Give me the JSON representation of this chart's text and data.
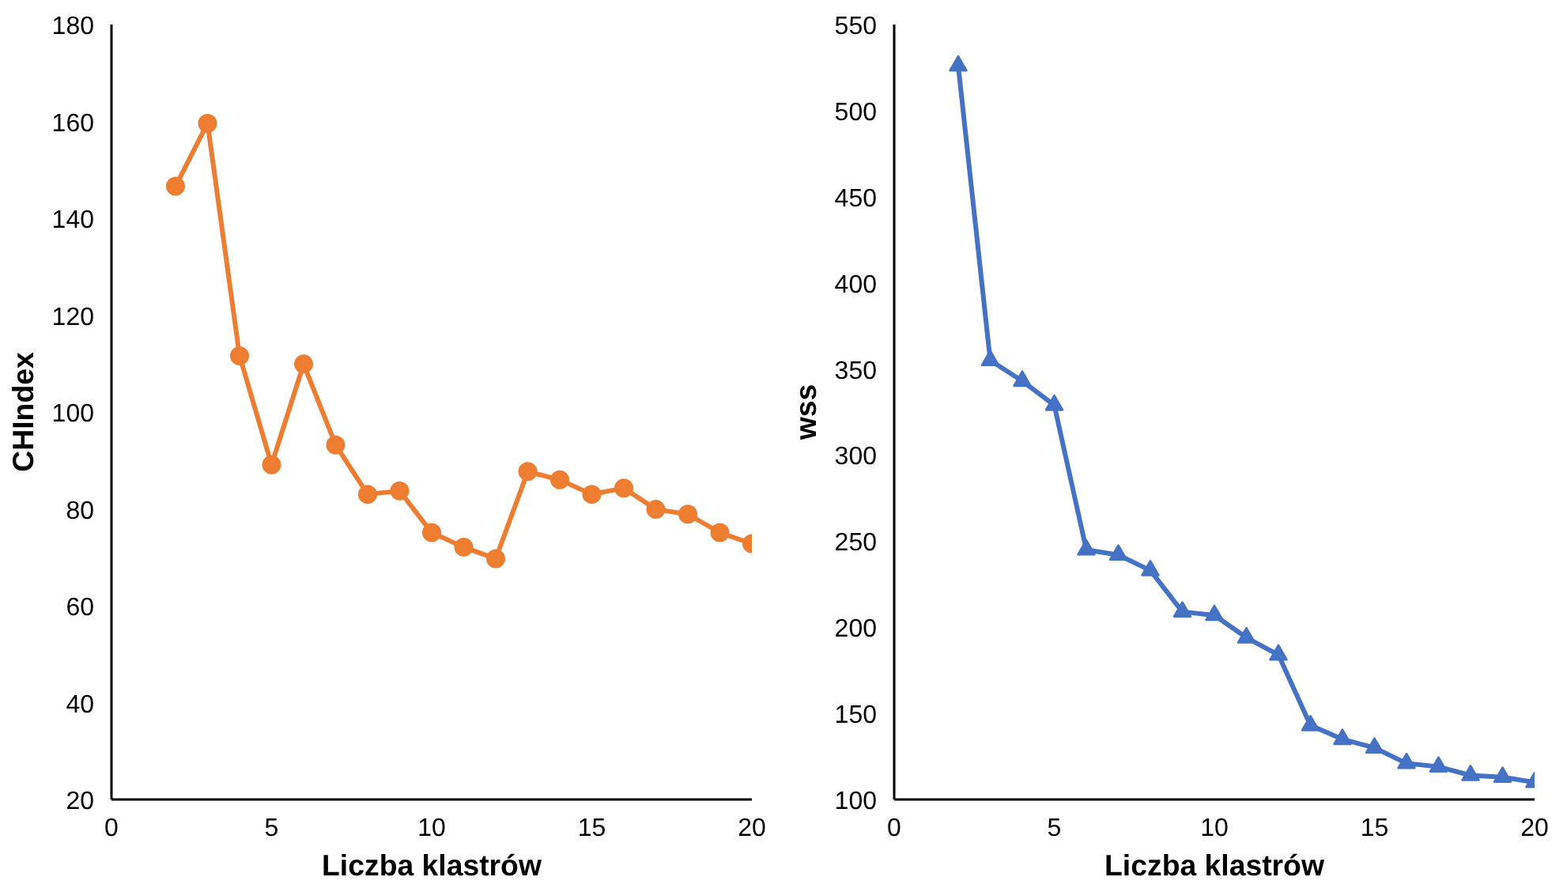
{
  "chart_data": [
    {
      "type": "line",
      "xlabel": "Liczba klastrów",
      "ylabel": "CHIndex",
      "marker": "circle",
      "line_style": "solid",
      "grid": false,
      "xlim": [
        0,
        20
      ],
      "xticks": [
        0,
        5,
        10,
        15,
        20
      ],
      "ylim": [
        20,
        180
      ],
      "yticks": [
        20,
        40,
        60,
        80,
        100,
        120,
        140,
        160,
        180
      ],
      "series": [
        {
          "color": "#ed7d31",
          "x": [
            2,
            3,
            4,
            5,
            6,
            7,
            8,
            9,
            10,
            11,
            12,
            13,
            14,
            15,
            16,
            17,
            18,
            19,
            20
          ],
          "values": [
            146.6,
            159.6,
            111.6,
            89.1,
            109.9,
            93.2,
            83,
            83.7,
            75.1,
            72.1,
            69.7,
            87.7,
            86,
            83,
            84.3,
            79.9,
            78.9,
            75.1,
            72.8
          ]
        }
      ]
    },
    {
      "type": "line",
      "xlabel": "Liczba klastrów",
      "ylabel": "wss",
      "marker": "triangle",
      "line_style": "solid",
      "grid": false,
      "xlim": [
        0,
        20
      ],
      "xticks": [
        0,
        5,
        10,
        15,
        20
      ],
      "ylim": [
        100,
        550
      ],
      "yticks": [
        100,
        150,
        200,
        250,
        300,
        350,
        400,
        450,
        500,
        550
      ],
      "series": [
        {
          "color": "#4472c4",
          "x": [
            2,
            3,
            4,
            5,
            6,
            7,
            8,
            9,
            10,
            11,
            12,
            13,
            14,
            15,
            16,
            17,
            18,
            19,
            20
          ],
          "values": [
            526,
            355,
            343,
            329,
            245,
            242,
            233,
            209,
            207,
            194,
            184,
            143,
            135,
            130,
            121,
            119,
            114,
            113,
            110
          ]
        }
      ]
    }
  ]
}
